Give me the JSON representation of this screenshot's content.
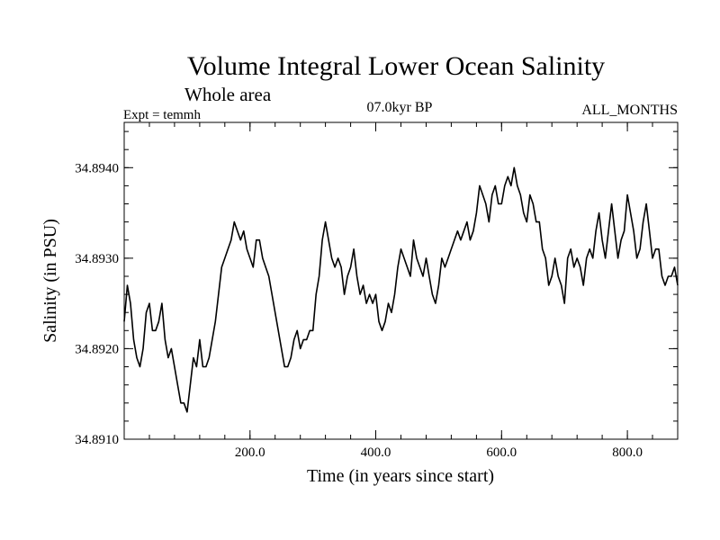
{
  "chart_data": {
    "type": "line",
    "title": "Volume Integral Lower Ocean Salinity",
    "subtitle": "Whole area",
    "experiment_label": "Expt = temmh",
    "period_label": "07.0kyr BP",
    "months_label": "ALL_MONTHS",
    "xlabel": "Time (in years since start)",
    "ylabel": "Salinity (in PSU)",
    "xlim": [
      0,
      880
    ],
    "ylim": [
      34.891,
      34.8945
    ],
    "x_ticks": [
      200,
      400,
      600,
      800
    ],
    "x_tick_labels": [
      "200.0",
      "400.0",
      "600.0",
      "800.0"
    ],
    "y_ticks": [
      34.891,
      34.892,
      34.893,
      34.894
    ],
    "y_tick_labels": [
      "34.8910",
      "34.8920",
      "34.8930",
      "34.8940"
    ],
    "x_minor_step": 40,
    "y_minor_step": 0.0002,
    "line_color": "#000000",
    "series": [
      {
        "name": "salinity",
        "x": [
          0,
          5,
          10,
          15,
          20,
          25,
          30,
          35,
          40,
          45,
          50,
          55,
          60,
          65,
          70,
          75,
          80,
          85,
          90,
          95,
          100,
          105,
          110,
          115,
          120,
          125,
          130,
          135,
          140,
          145,
          150,
          155,
          160,
          165,
          170,
          175,
          180,
          185,
          190,
          195,
          200,
          205,
          210,
          215,
          220,
          225,
          230,
          235,
          240,
          245,
          250,
          255,
          260,
          265,
          270,
          275,
          280,
          285,
          290,
          295,
          300,
          305,
          310,
          315,
          320,
          325,
          330,
          335,
          340,
          345,
          350,
          355,
          360,
          365,
          370,
          375,
          380,
          385,
          390,
          395,
          400,
          405,
          410,
          415,
          420,
          425,
          430,
          435,
          440,
          445,
          450,
          455,
          460,
          465,
          470,
          475,
          480,
          485,
          490,
          495,
          500,
          505,
          510,
          515,
          520,
          525,
          530,
          535,
          540,
          545,
          550,
          555,
          560,
          565,
          570,
          575,
          580,
          585,
          590,
          595,
          600,
          605,
          610,
          615,
          620,
          625,
          630,
          635,
          640,
          645,
          650,
          655,
          660,
          665,
          670,
          675,
          680,
          685,
          690,
          695,
          700,
          705,
          710,
          715,
          720,
          725,
          730,
          735,
          740,
          745,
          750,
          755,
          760,
          765,
          770,
          775,
          780,
          785,
          790,
          795,
          800,
          805,
          810,
          815,
          820,
          825,
          830,
          835,
          840,
          845,
          850,
          855,
          860,
          865,
          870,
          875,
          880
        ],
        "values": [
          34.8923,
          34.8927,
          34.8925,
          34.8921,
          34.8919,
          34.8918,
          34.892,
          34.8924,
          34.8925,
          34.8922,
          34.8922,
          34.8923,
          34.8925,
          34.8921,
          34.8919,
          34.892,
          34.8918,
          34.8916,
          34.8914,
          34.8914,
          34.8913,
          34.8916,
          34.8919,
          34.8918,
          34.8921,
          34.8918,
          34.8918,
          34.8919,
          34.8921,
          34.8923,
          34.8926,
          34.8929,
          34.893,
          34.8931,
          34.8932,
          34.8934,
          34.8933,
          34.8932,
          34.8933,
          34.8931,
          34.893,
          34.8929,
          34.8932,
          34.8932,
          34.893,
          34.8929,
          34.8928,
          34.8926,
          34.8924,
          34.8922,
          34.892,
          34.8918,
          34.8918,
          34.8919,
          34.8921,
          34.8922,
          34.892,
          34.8921,
          34.8921,
          34.8922,
          34.8922,
          34.8926,
          34.8928,
          34.8932,
          34.8934,
          34.8932,
          34.893,
          34.8929,
          34.893,
          34.8929,
          34.8926,
          34.8928,
          34.8929,
          34.8931,
          34.8928,
          34.8926,
          34.8927,
          34.8925,
          34.8926,
          34.8925,
          34.8926,
          34.8923,
          34.8922,
          34.8923,
          34.8925,
          34.8924,
          34.8926,
          34.8929,
          34.8931,
          34.893,
          34.8929,
          34.8928,
          34.8932,
          34.893,
          34.8929,
          34.8928,
          34.893,
          34.8928,
          34.8926,
          34.8925,
          34.8927,
          34.893,
          34.8929,
          34.893,
          34.8931,
          34.8932,
          34.8933,
          34.8932,
          34.8933,
          34.8934,
          34.8932,
          34.8933,
          34.8935,
          34.8938,
          34.8937,
          34.8936,
          34.8934,
          34.8937,
          34.8938,
          34.8936,
          34.8936,
          34.8938,
          34.8939,
          34.8938,
          34.894,
          34.8938,
          34.8937,
          34.8935,
          34.8934,
          34.8937,
          34.8936,
          34.8934,
          34.8934,
          34.8931,
          34.893,
          34.8927,
          34.8928,
          34.893,
          34.8928,
          34.8927,
          34.8925,
          34.893,
          34.8931,
          34.8929,
          34.893,
          34.8929,
          34.8927,
          34.893,
          34.8931,
          34.893,
          34.8933,
          34.8935,
          34.8932,
          34.893,
          34.8933,
          34.8936,
          34.8933,
          34.893,
          34.8932,
          34.8933,
          34.8937,
          34.8935,
          34.8933,
          34.893,
          34.8931,
          34.8934,
          34.8936,
          34.8933,
          34.893,
          34.8931,
          34.8931,
          34.8928,
          34.8927,
          34.8928,
          34.8928,
          34.8929,
          34.8927
        ]
      }
    ]
  }
}
